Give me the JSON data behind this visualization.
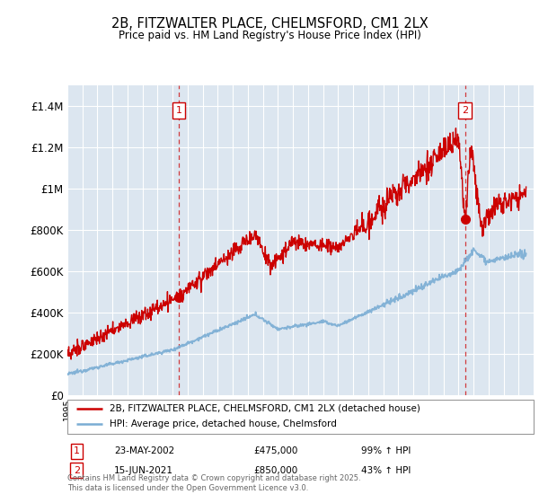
{
  "title": "2B, FITZWALTER PLACE, CHELMSFORD, CM1 2LX",
  "subtitle": "Price paid vs. HM Land Registry's House Price Index (HPI)",
  "plot_bg_color": "#dce6f0",
  "ylim": [
    0,
    1500000
  ],
  "yticks": [
    0,
    200000,
    400000,
    600000,
    800000,
    1000000,
    1200000,
    1400000
  ],
  "ytick_labels": [
    "£0",
    "£200K",
    "£400K",
    "£600K",
    "£800K",
    "£1M",
    "£1.2M",
    "£1.4M"
  ],
  "purchase1": {
    "date": "23-MAY-2002",
    "price": 475000,
    "year": 2002.4,
    "label": "99% ↑ HPI"
  },
  "purchase2": {
    "date": "15-JUN-2021",
    "price": 850000,
    "year": 2021.45,
    "label": "43% ↑ HPI"
  },
  "legend_line1": "2B, FITZWALTER PLACE, CHELMSFORD, CM1 2LX (detached house)",
  "legend_line2": "HPI: Average price, detached house, Chelmsford",
  "footer": "Contains HM Land Registry data © Crown copyright and database right 2025.\nThis data is licensed under the Open Government Licence v3.0.",
  "red_color": "#cc0000",
  "blue_color": "#7aadd4",
  "xmin": 1995,
  "xmax": 2026
}
